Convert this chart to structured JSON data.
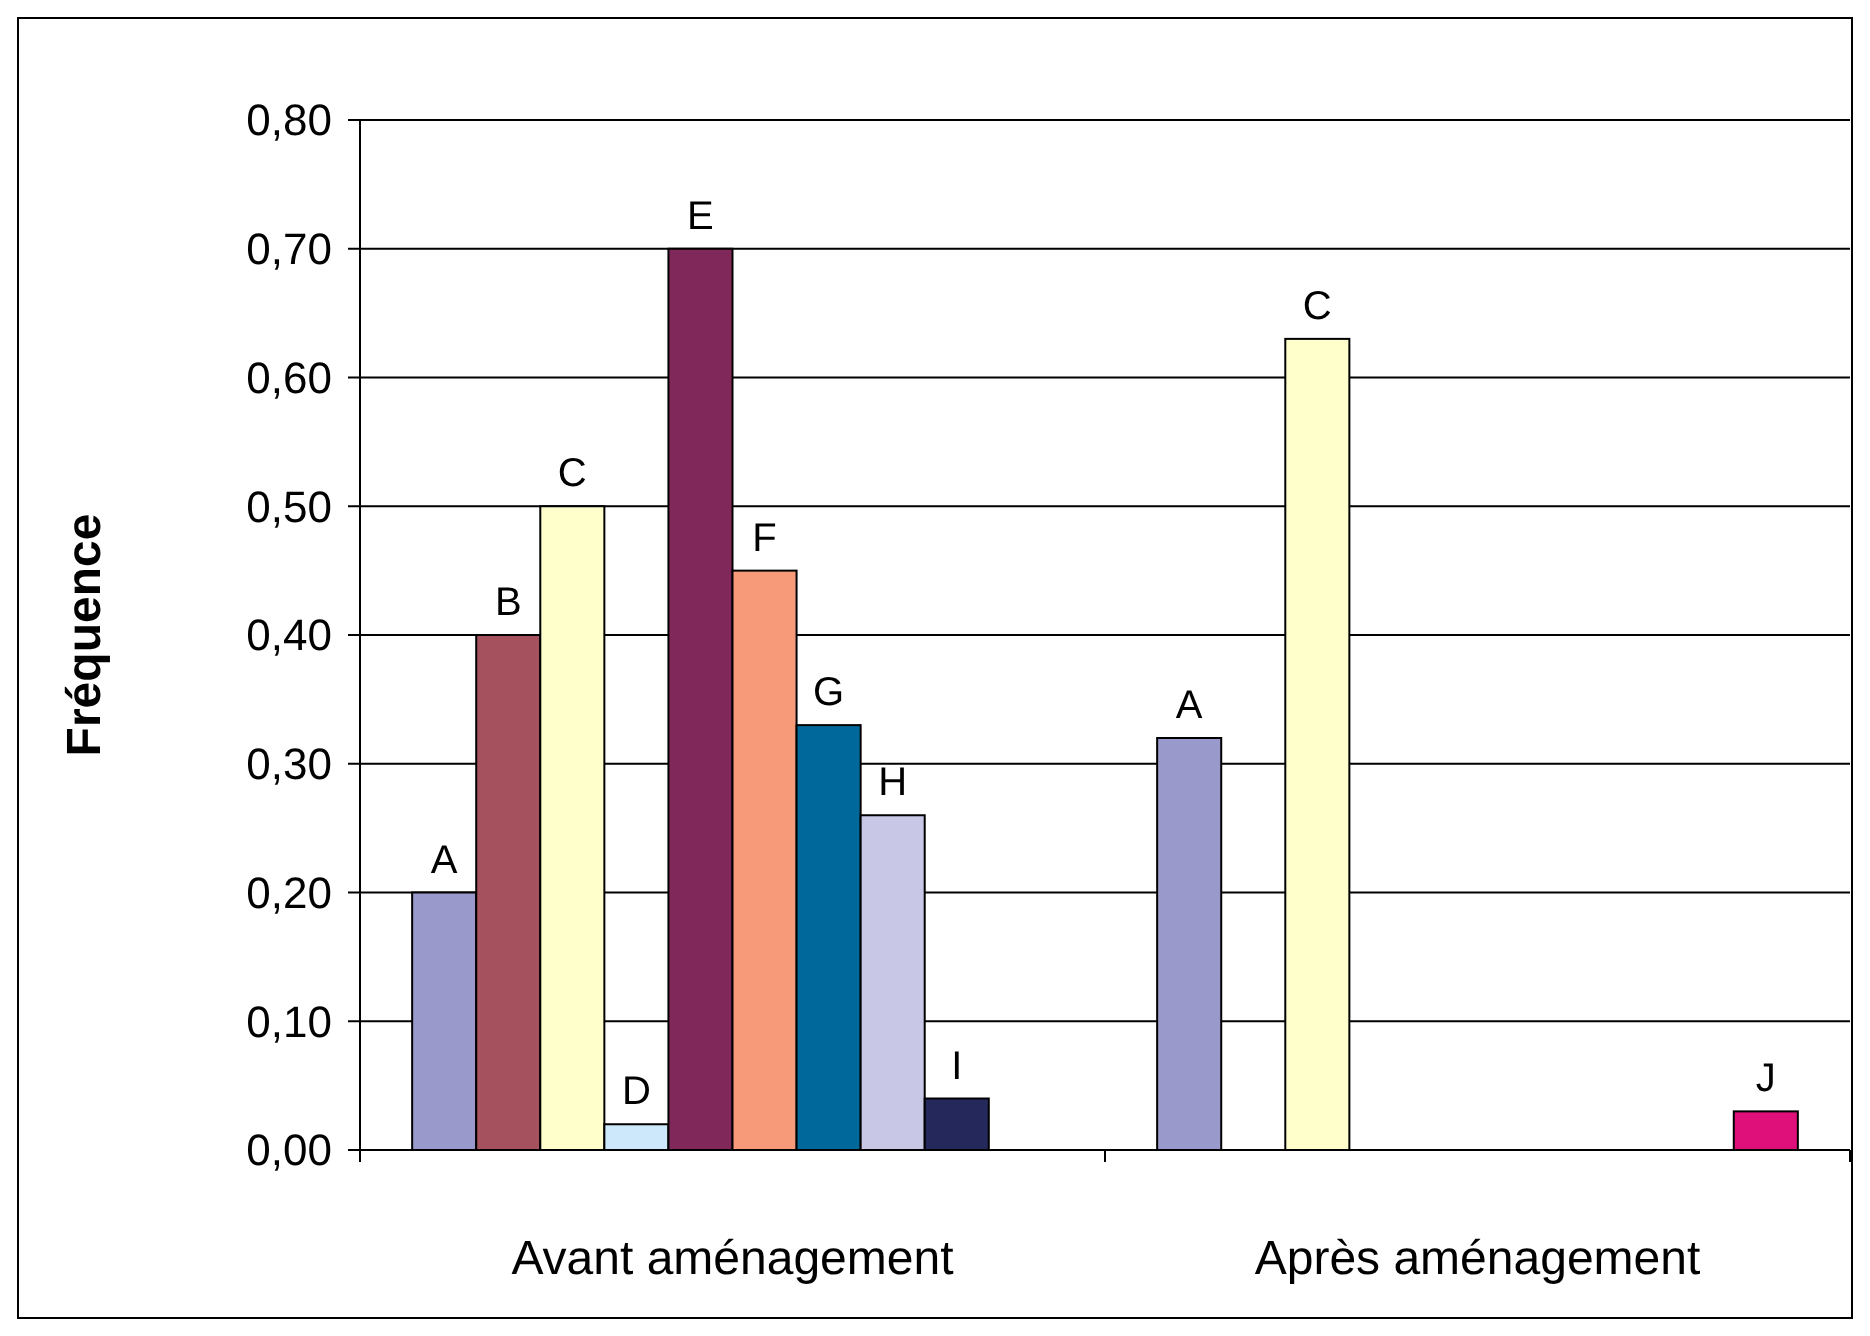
{
  "chart_data": {
    "type": "bar",
    "ylabel": "Fréquence",
    "categories": [
      "Avant aménagement",
      "Après aménagement"
    ],
    "series": [
      {
        "name": "A",
        "color": "#9999cc",
        "values": [
          0.2,
          0.32
        ]
      },
      {
        "name": "B",
        "color": "#a5525e",
        "values": [
          0.4,
          null
        ]
      },
      {
        "name": "C",
        "color": "#ffffcc",
        "values": [
          0.5,
          0.63
        ]
      },
      {
        "name": "D",
        "color": "#cce8fa",
        "values": [
          0.02,
          null
        ]
      },
      {
        "name": "E",
        "color": "#80285a",
        "values": [
          0.7,
          null
        ]
      },
      {
        "name": "F",
        "color": "#f79a7a",
        "values": [
          0.45,
          null
        ]
      },
      {
        "name": "G",
        "color": "#00689a",
        "values": [
          0.33,
          null
        ]
      },
      {
        "name": "H",
        "color": "#c8c8e6",
        "values": [
          0.26,
          null
        ]
      },
      {
        "name": "I",
        "color": "#24285a",
        "values": [
          0.04,
          null
        ]
      },
      {
        "name": "J",
        "color": "#e0107a",
        "values": [
          null,
          0.03
        ]
      }
    ],
    "ylim": [
      0,
      0.8
    ],
    "yticks": [
      {
        "value": 0,
        "label": "0,00"
      },
      {
        "value": 0.1,
        "label": "0,10"
      },
      {
        "value": 0.2,
        "label": "0,20"
      },
      {
        "value": 0.3,
        "label": "0,30"
      },
      {
        "value": 0.4,
        "label": "0,40"
      },
      {
        "value": 0.5,
        "label": "0,50"
      },
      {
        "value": 0.6,
        "label": "0,60"
      },
      {
        "value": 0.7,
        "label": "0,70"
      },
      {
        "value": 0.8,
        "label": "0,80"
      }
    ],
    "grid": "y"
  }
}
